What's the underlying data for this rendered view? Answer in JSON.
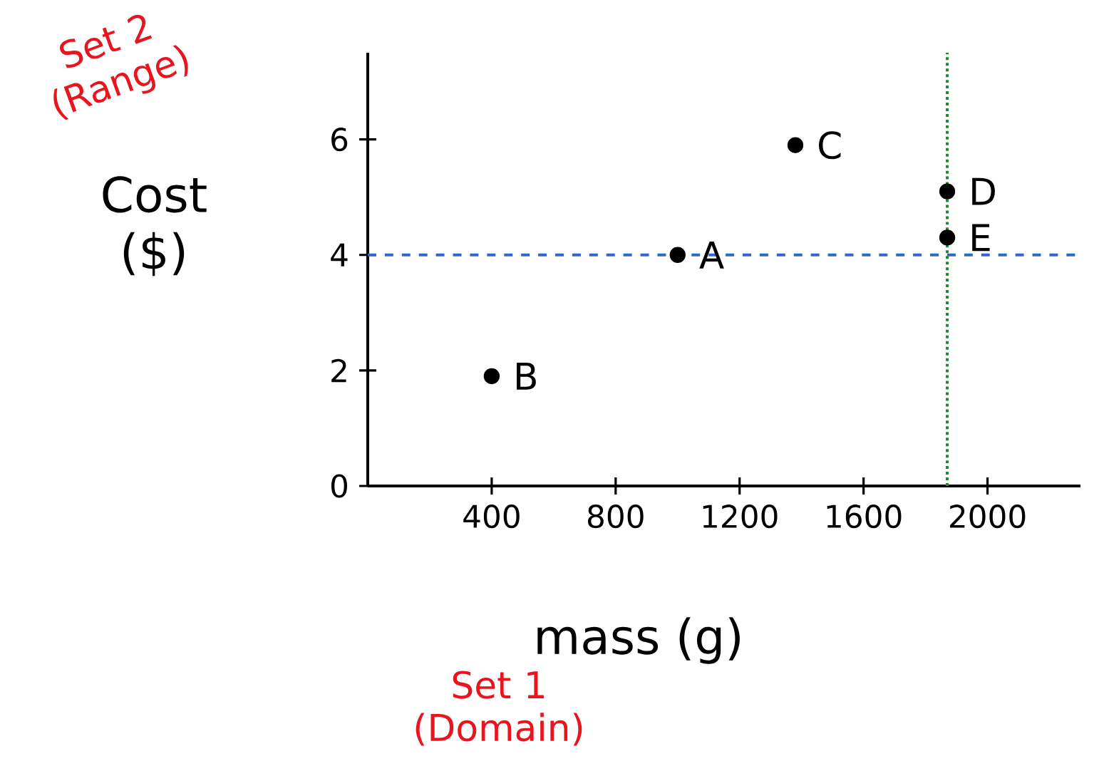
{
  "chart_data": {
    "type": "scatter",
    "xlabel": "mass (g)",
    "ylabel": "Cost ($)",
    "x": [
      1000,
      400,
      1380,
      1870,
      1870
    ],
    "values": [
      4.0,
      1.9,
      5.9,
      5.1,
      4.3
    ],
    "color": "#000000",
    "xlim": [
      0,
      2300
    ],
    "ylim": [
      0,
      7.5
    ],
    "xticks": [
      400,
      800,
      1200,
      1600,
      2000
    ],
    "yticks": [
      0,
      2,
      4,
      6
    ],
    "ref_lines": [
      {
        "axis": "y",
        "value": 4,
        "color": "#3366cc",
        "line_style": "dashed"
      },
      {
        "axis": "x",
        "value": 1870,
        "color": "#228833",
        "line_style": "dotted"
      }
    ],
    "annotations": [
      {
        "text": "A",
        "x": 1000,
        "y": 4.0
      },
      {
        "text": "B",
        "x": 400,
        "y": 1.9
      },
      {
        "text": "C",
        "x": 1380,
        "y": 5.9
      },
      {
        "text": "D",
        "x": 1870,
        "y": 5.1
      },
      {
        "text": "E",
        "x": 1870,
        "y": 4.3
      },
      "Set 2 (Range)",
      "Set 1 (Domain)"
    ]
  }
}
